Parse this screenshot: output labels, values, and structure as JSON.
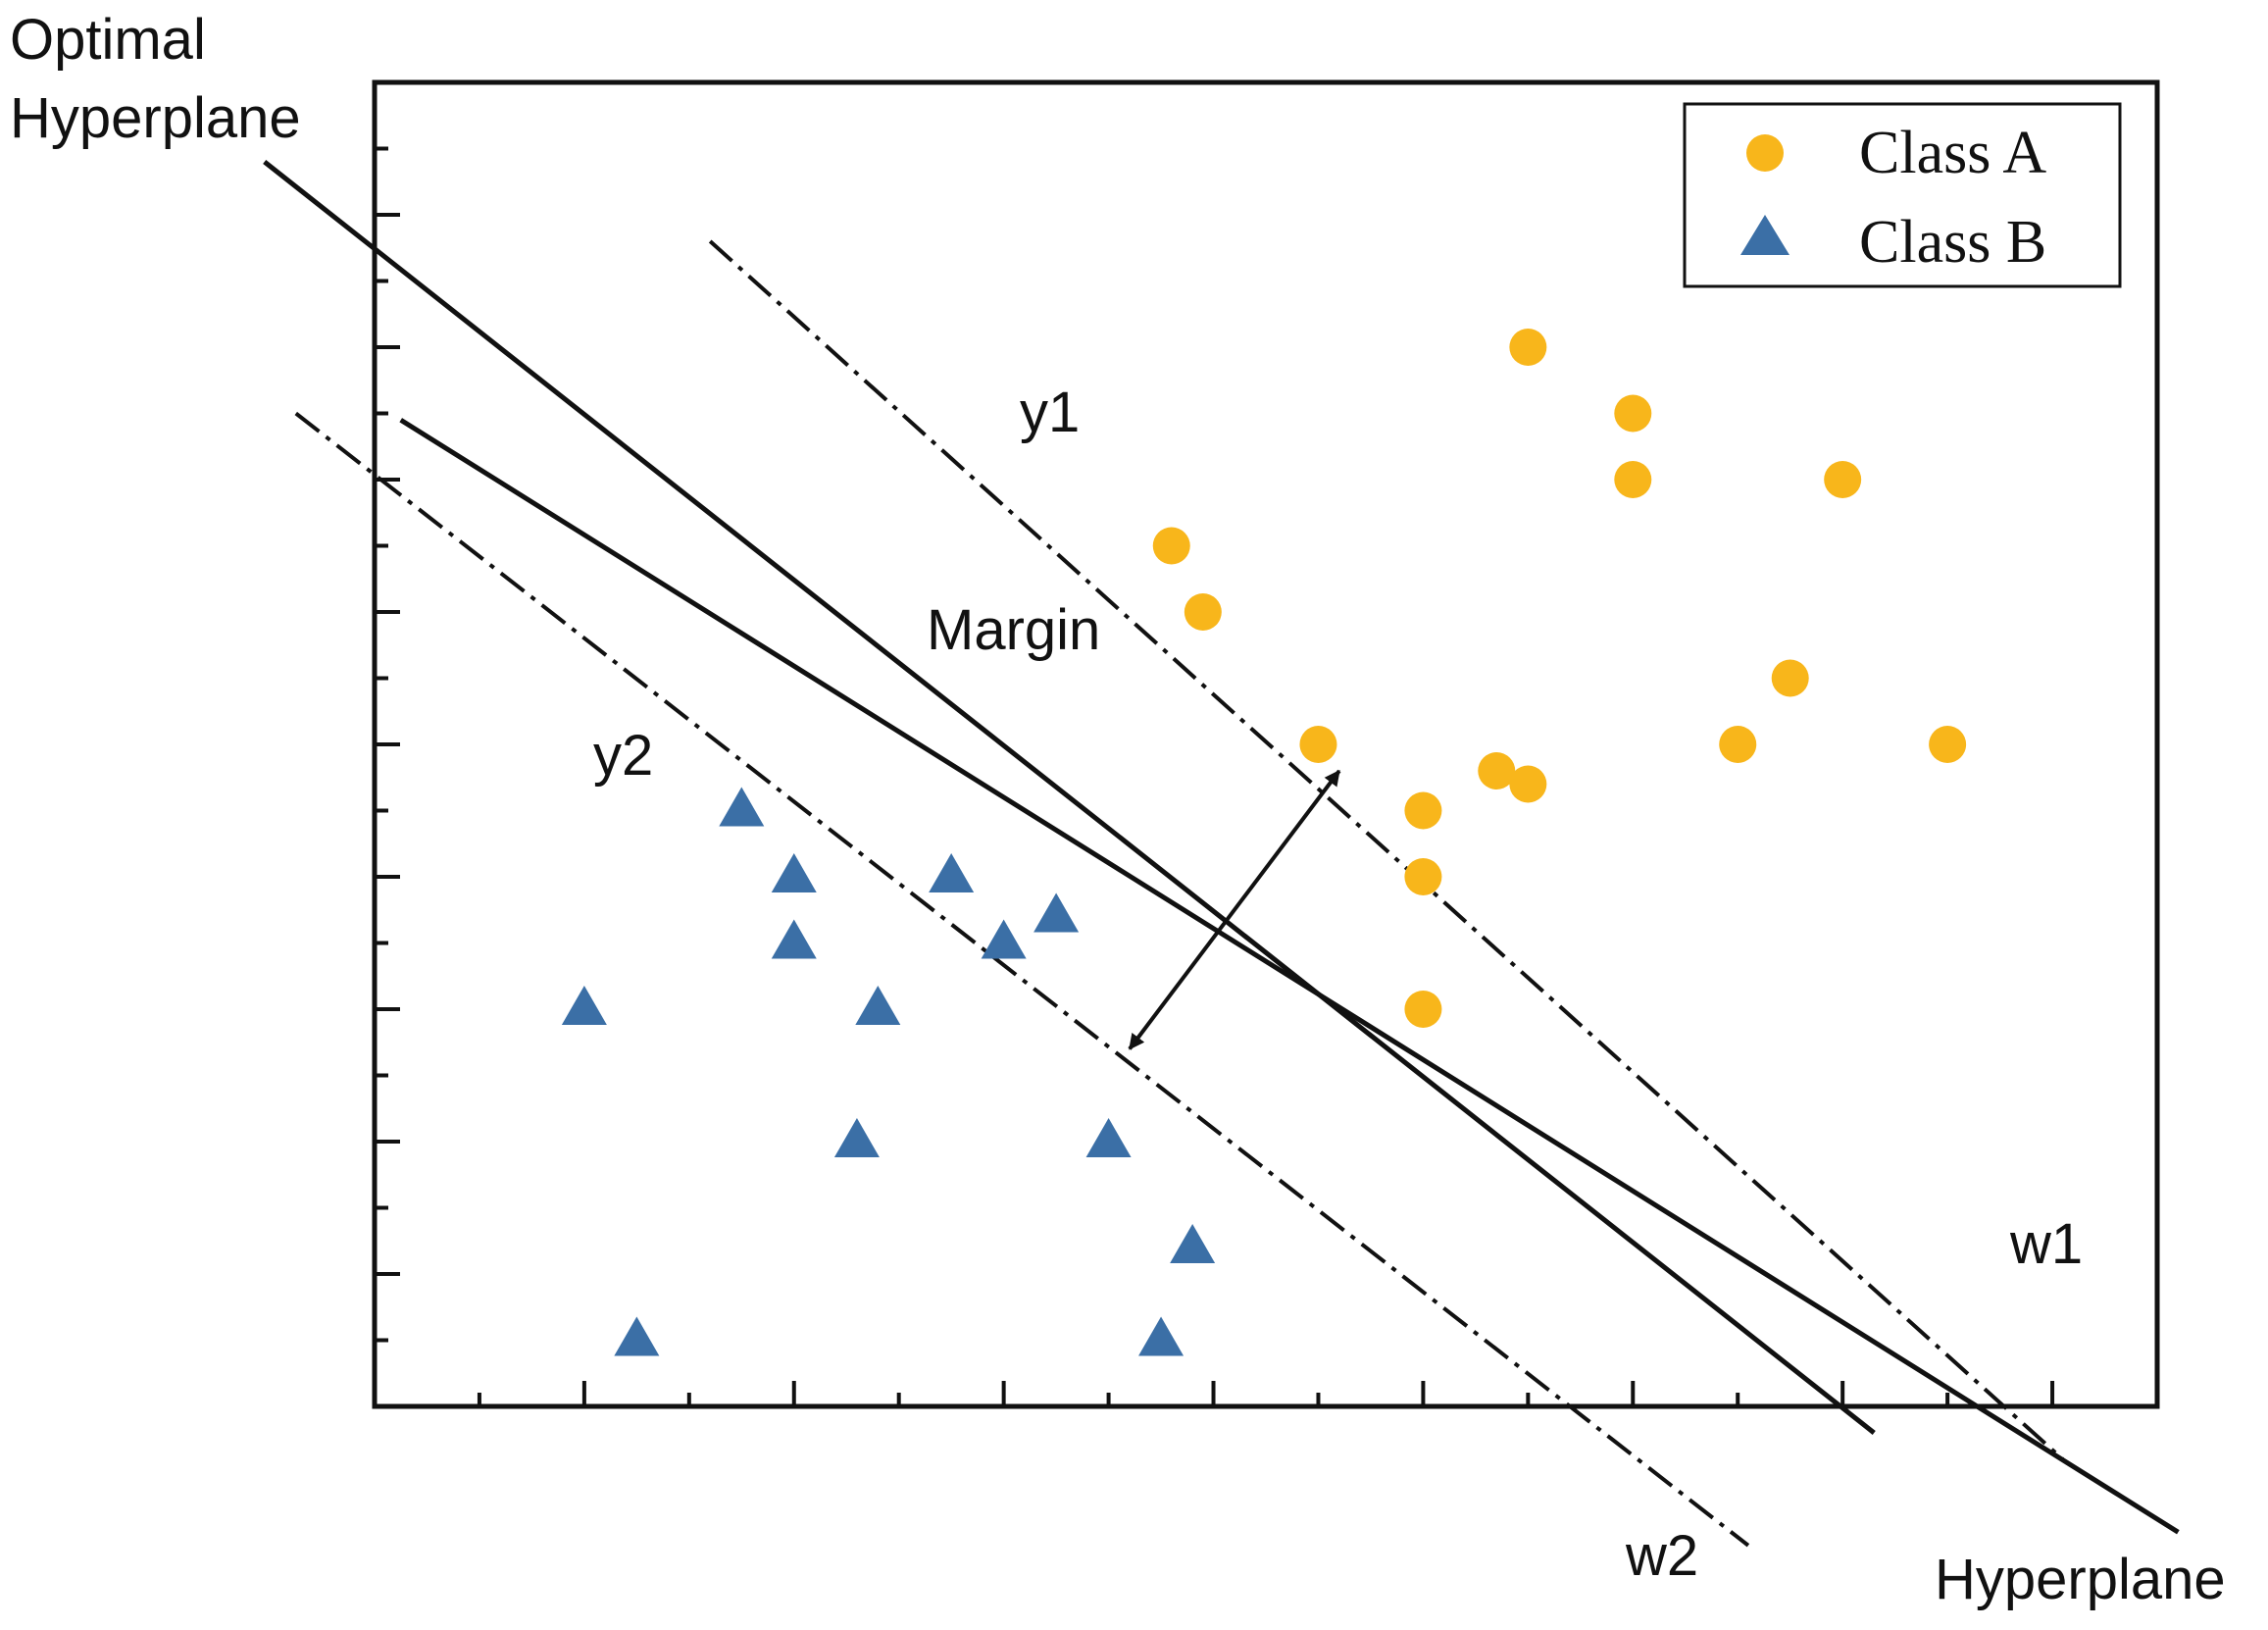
{
  "chart_data": {
    "type": "scatter",
    "title": "",
    "xlabel": "",
    "ylabel": "",
    "xlim": [
      0,
      17
    ],
    "ylim": [
      0,
      10
    ],
    "grid": false,
    "legend_position": "top-right",
    "series": [
      {
        "name": "Class A",
        "marker": "circle",
        "color": "#F8B61B",
        "points": [
          [
            7.6,
            6.5
          ],
          [
            7.9,
            6.0
          ],
          [
            9.0,
            5.0
          ],
          [
            10.0,
            4.5
          ],
          [
            10.0,
            4.0
          ],
          [
            10.0,
            3.0
          ],
          [
            10.7,
            4.8
          ],
          [
            11.0,
            8.0
          ],
          [
            11.0,
            4.7
          ],
          [
            12.0,
            7.5
          ],
          [
            12.0,
            7.0
          ],
          [
            13.0,
            5.0
          ],
          [
            13.5,
            5.5
          ],
          [
            14.0,
            7.0
          ],
          [
            15.0,
            5.0
          ]
        ]
      },
      {
        "name": "Class B",
        "marker": "triangle",
        "color": "#3B6FA6",
        "points": [
          [
            2.0,
            3.0
          ],
          [
            2.5,
            0.5
          ],
          [
            3.5,
            4.5
          ],
          [
            4.0,
            4.0
          ],
          [
            4.0,
            3.5
          ],
          [
            4.6,
            2.0
          ],
          [
            4.8,
            3.0
          ],
          [
            5.5,
            4.0
          ],
          [
            6.0,
            3.5
          ],
          [
            6.5,
            3.7
          ],
          [
            7.0,
            2.0
          ],
          [
            7.8,
            1.2
          ],
          [
            7.5,
            0.5
          ]
        ]
      }
    ],
    "lines": [
      {
        "name": "Optimal Hyperplane",
        "style": "solid",
        "p1": [
          -1.05,
          9.4
        ],
        "p2": [
          14.3,
          -0.2
        ]
      },
      {
        "name": "Hyperplane",
        "style": "solid",
        "p1": [
          0.25,
          7.45
        ],
        "p2": [
          17.2,
          -0.95
        ]
      },
      {
        "name": "w1",
        "style": "dash-dot",
        "p1": [
          3.2,
          8.8
        ],
        "p2": [
          16.1,
          -0.4
        ]
      },
      {
        "name": "w2",
        "style": "dash-dot",
        "p1": [
          -0.75,
          7.5
        ],
        "p2": [
          13.1,
          -1.05
        ]
      }
    ],
    "margin_arrow": {
      "from": [
        9.2,
        4.8
      ],
      "to": [
        7.2,
        2.7
      ]
    },
    "annotations": [
      {
        "text": "Optimal\nHyperplane",
        "points_to": "Optimal Hyperplane"
      },
      {
        "text": "Hyperplane",
        "points_to": "Hyperplane"
      },
      {
        "text": "y1",
        "near": "w1"
      },
      {
        "text": "y2",
        "near": "w2"
      },
      {
        "text": "w1",
        "near": "w1"
      },
      {
        "text": "w2",
        "near": "w2"
      },
      {
        "text": "Margin",
        "near": "margin_arrow"
      }
    ]
  },
  "labels": {
    "optimal_line1": "Optimal",
    "optimal_line2": "Hyperplane",
    "hyperplane": "Hyperplane",
    "margin": "Margin",
    "y1": "y1",
    "y2": "y2",
    "w1": "w1",
    "w2": "w2"
  },
  "legend": {
    "class_a": "Class A",
    "class_b": "Class B"
  },
  "colors": {
    "class_a": "#F8B61B",
    "class_b": "#3B6FA6",
    "ink": "#111111"
  }
}
